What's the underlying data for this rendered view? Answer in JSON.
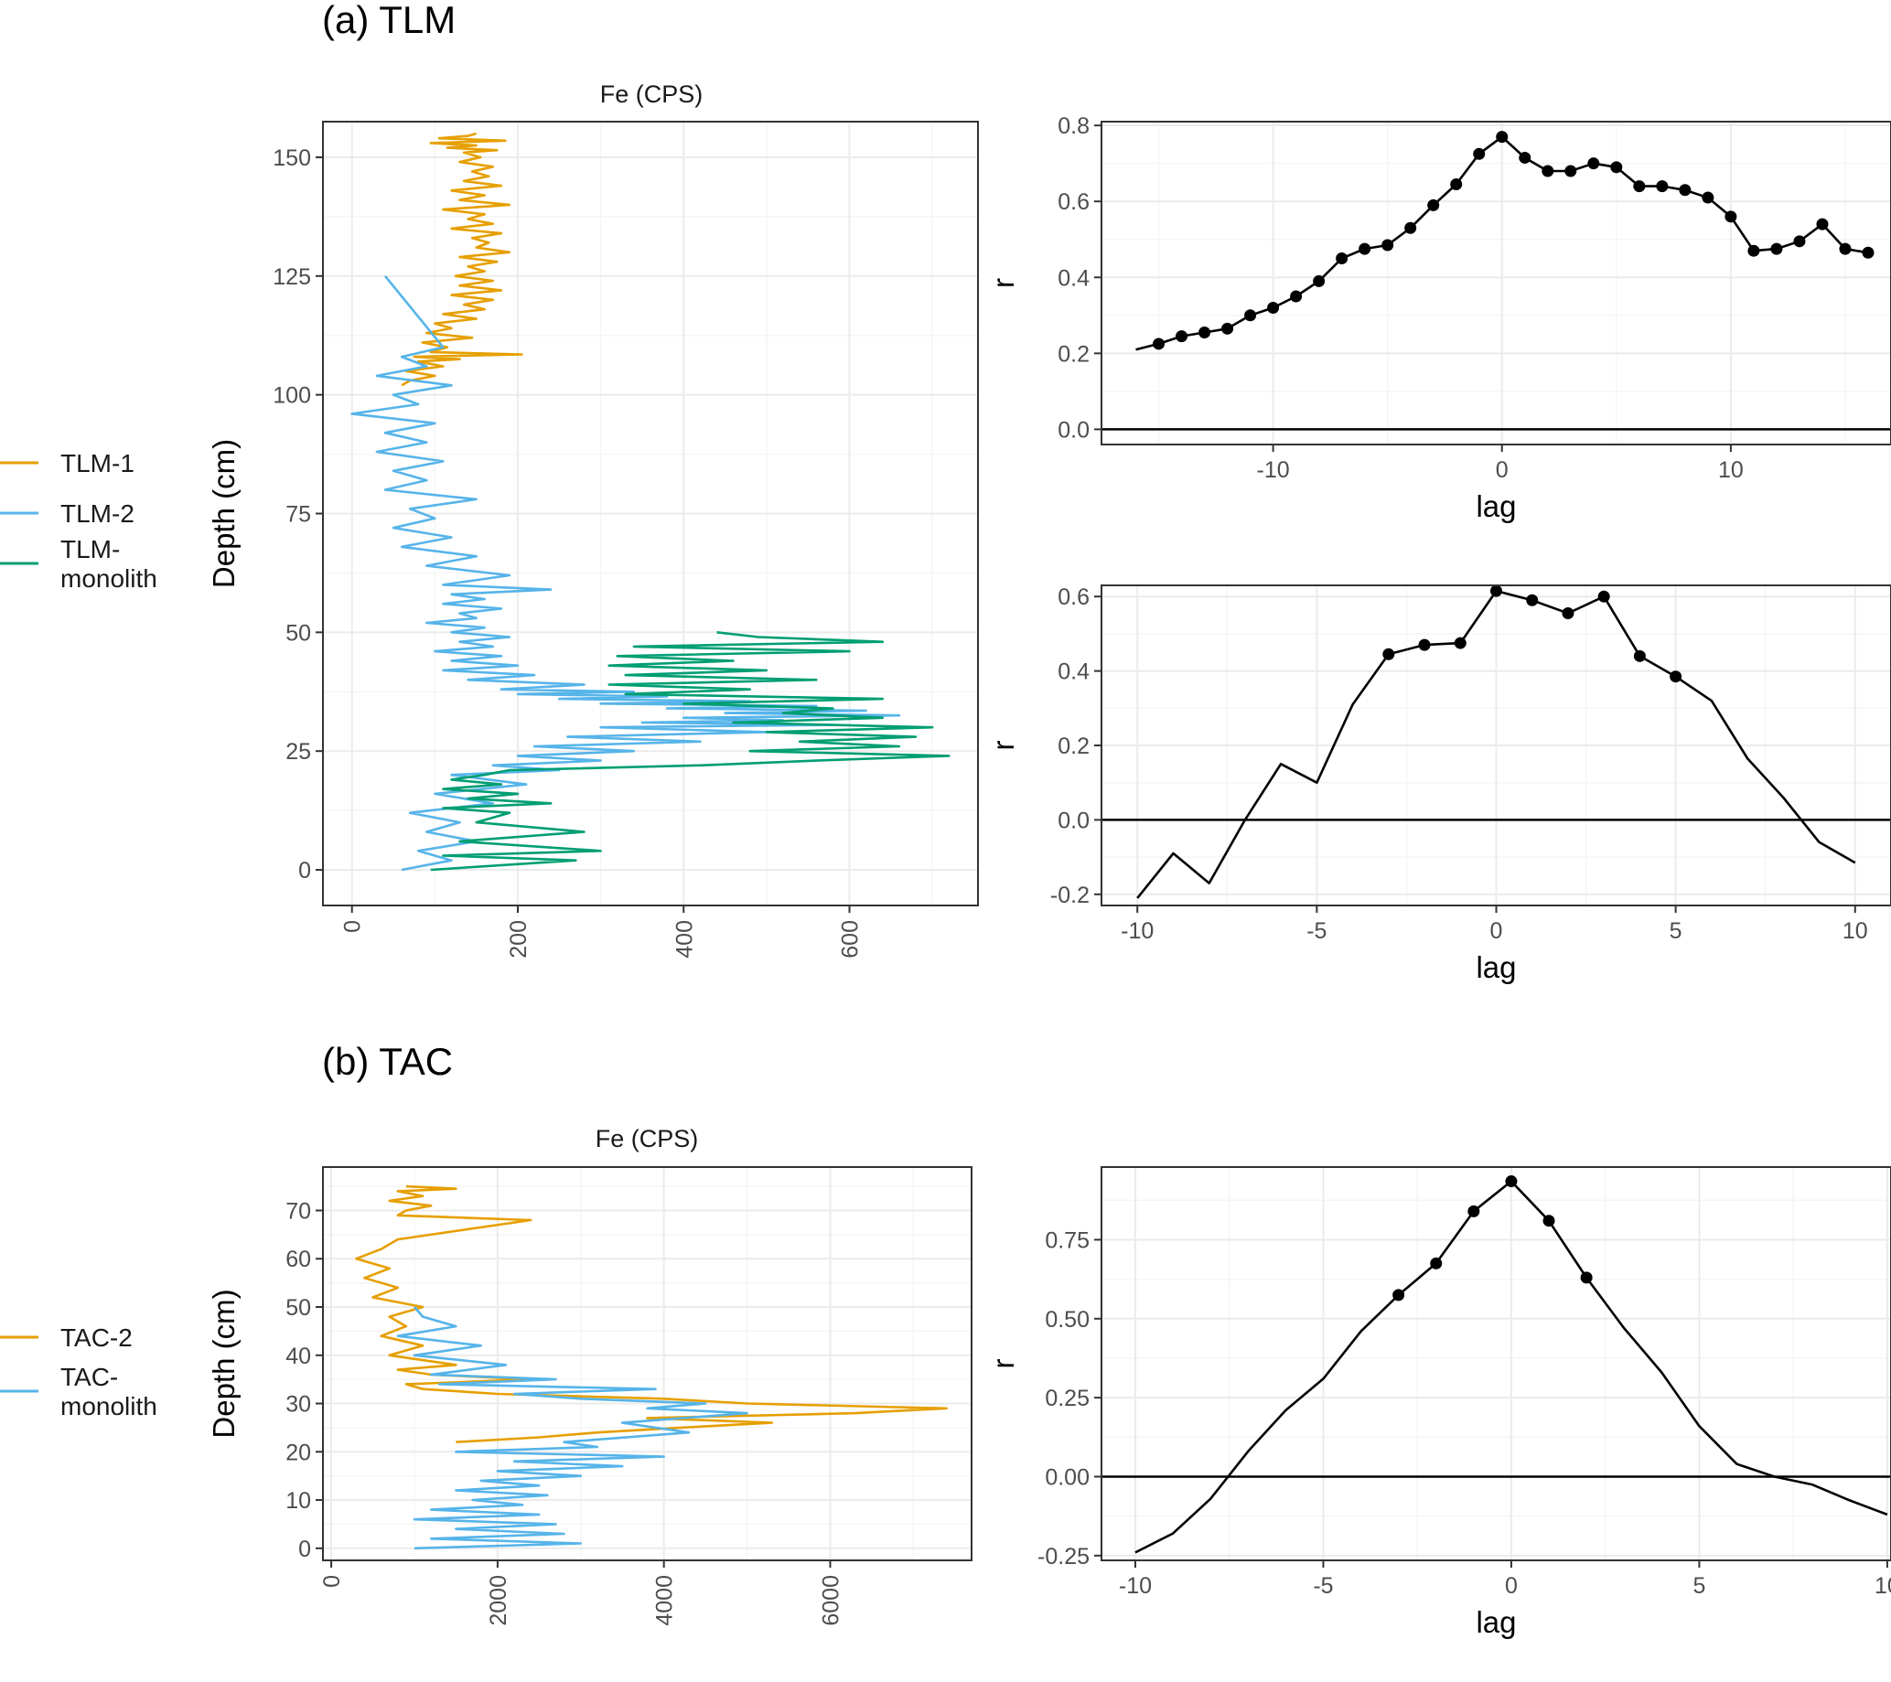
{
  "figure": {
    "panel_a_title": "(a) TLM",
    "panel_b_title": "(b) TAC",
    "legend_a": [
      {
        "label": "TLM-1",
        "color": "#E69F00"
      },
      {
        "label": "TLM-2",
        "color": "#56B4E9"
      },
      {
        "label": "TLM-\nmonolith",
        "color": "#009E73"
      }
    ],
    "legend_b": [
      {
        "label": "TAC-2",
        "color": "#E69F00"
      },
      {
        "label": "TAC-\nmonolith",
        "color": "#56B4E9"
      }
    ]
  },
  "chart_data": [
    {
      "id": "tlm_depth",
      "type": "line",
      "title": "Fe (CPS)",
      "xlabel": "",
      "ylabel": "Depth (cm)",
      "xlim": [
        -35,
        755
      ],
      "ylim": [
        -7.5,
        157.5
      ],
      "xticks": [
        0,
        200,
        400,
        600
      ],
      "yticks": [
        0,
        25,
        50,
        75,
        100,
        125,
        150
      ],
      "x_tick_rotation": -90,
      "series": [
        {
          "name": "TLM-1",
          "color": "#E69F00",
          "x": [
            60,
            70,
            100,
            65,
            110,
            80,
            130,
            75,
            205,
            95,
            115,
            85,
            145,
            90,
            120,
            100,
            150,
            110,
            160,
            135,
            170,
            120,
            180,
            130,
            170,
            125,
            160,
            140,
            175,
            130,
            190,
            150,
            165,
            145,
            180,
            120,
            170,
            140,
            160,
            110,
            190,
            130,
            160,
            120,
            180,
            135,
            165,
            145,
            170,
            130,
            155,
            135,
            175,
            115,
            150,
            95,
            185,
            105,
            140,
            150
          ],
          "y": [
            102,
            103,
            104,
            105,
            106,
            107,
            107.5,
            108,
            108.5,
            109,
            110,
            111,
            112,
            113,
            114,
            115,
            116,
            117,
            118,
            119,
            120,
            121,
            122,
            123,
            124,
            125,
            126,
            127,
            128,
            129,
            130,
            131,
            132,
            133,
            134,
            135,
            136,
            137,
            138,
            139,
            140,
            141,
            142,
            143,
            144,
            145,
            146,
            147,
            148,
            149,
            150,
            151,
            151.5,
            152,
            152.5,
            153,
            153.5,
            154,
            154.5,
            155
          ]
        },
        {
          "name": "TLM-2",
          "color": "#56B4E9",
          "x": [
            60,
            120,
            80,
            150,
            90,
            130,
            70,
            170,
            100,
            210,
            120,
            250,
            170,
            300,
            200,
            340,
            220,
            420,
            260,
            500,
            300,
            580,
            350,
            520,
            400,
            660,
            450,
            620,
            380,
            560,
            300,
            480,
            250,
            380,
            200,
            340,
            180,
            280,
            140,
            220,
            110,
            200,
            120,
            180,
            100,
            170,
            130,
            190,
            120,
            160,
            90,
            150,
            130,
            180,
            110,
            160,
            120,
            240,
            110,
            190,
            90,
            150,
            60,
            120,
            50,
            100,
            70,
            150,
            40,
            90,
            50,
            110,
            30,
            90,
            40,
            100,
            0,
            80,
            50,
            120,
            30,
            90,
            60,
            110,
            40
          ],
          "y": [
            0,
            2,
            4,
            6,
            8,
            10,
            12,
            14,
            16,
            18,
            20,
            21,
            22,
            23,
            24,
            25,
            26,
            27,
            28,
            29,
            30,
            30.5,
            31,
            31.5,
            32,
            32.5,
            33,
            33.5,
            34,
            34.5,
            35,
            35.5,
            36,
            36.5,
            37,
            37.5,
            38,
            39,
            40,
            41,
            42,
            43,
            44,
            45,
            46,
            47,
            48,
            49,
            50,
            51,
            52,
            53,
            54,
            55,
            56,
            57,
            58,
            59,
            60,
            62,
            64,
            66,
            68,
            70,
            72,
            74,
            76,
            78,
            80,
            82,
            84,
            86,
            88,
            90,
            92,
            94,
            96,
            98,
            100,
            102,
            104,
            106,
            108,
            110,
            125
          ]
        },
        {
          "name": "TLM-monolith",
          "color": "#009E73",
          "x": [
            95,
            270,
            110,
            300,
            130,
            280,
            150,
            190,
            110,
            240,
            140,
            200,
            110,
            180,
            120,
            160,
            190,
            420,
            560,
            720,
            480,
            660,
            540,
            680,
            500,
            700,
            460,
            640,
            520,
            580,
            400,
            640,
            330,
            480,
            310,
            560,
            330,
            500,
            310,
            460,
            320,
            600,
            340,
            640,
            490,
            440
          ],
          "y": [
            0,
            2,
            3,
            4,
            6,
            8,
            10,
            12,
            13,
            14,
            15,
            16,
            17,
            18,
            19,
            20,
            21,
            22,
            23,
            24,
            25,
            26,
            27,
            28,
            29,
            30,
            31,
            32,
            33,
            34,
            35,
            36,
            37,
            38,
            39,
            40,
            41,
            42,
            43,
            44,
            45,
            46,
            47,
            48,
            49,
            50
          ]
        }
      ]
    },
    {
      "id": "tlm_ccf1",
      "type": "line",
      "xlabel": "lag",
      "ylabel": "r",
      "xlim": [
        -17.5,
        17
      ],
      "ylim": [
        -0.04,
        0.81
      ],
      "xticks": [
        -10,
        0,
        10
      ],
      "yticks": [
        0.0,
        0.2,
        0.4,
        0.6,
        0.8
      ],
      "ytick_labels": [
        "0.0",
        "0.2",
        "0.4",
        "0.6",
        "0.8"
      ],
      "hline": 0,
      "series": [
        {
          "name": "ccf",
          "color": "#000000",
          "x": [
            -16,
            -15,
            -14,
            -13,
            -12,
            -11,
            -10,
            -9,
            -8,
            -7,
            -6,
            -5,
            -4,
            -3,
            -2,
            -1,
            0,
            1,
            2,
            3,
            4,
            5,
            6,
            7,
            8,
            9,
            10,
            11,
            12,
            13,
            14,
            15,
            16
          ],
          "y": [
            0.21,
            0.225,
            0.245,
            0.255,
            0.265,
            0.3,
            0.32,
            0.35,
            0.39,
            0.45,
            0.475,
            0.485,
            0.53,
            0.59,
            0.645,
            0.725,
            0.77,
            0.715,
            0.68,
            0.68,
            0.7,
            0.69,
            0.64,
            0.64,
            0.63,
            0.61,
            0.56,
            0.47,
            0.475,
            0.495,
            0.54,
            0.475,
            0.465
          ],
          "markers": [
            false,
            true,
            true,
            true,
            true,
            true,
            true,
            true,
            true,
            true,
            true,
            true,
            true,
            true,
            true,
            true,
            true,
            true,
            true,
            true,
            true,
            true,
            true,
            true,
            true,
            true,
            true,
            true,
            true,
            true,
            true,
            true,
            true
          ]
        }
      ]
    },
    {
      "id": "tlm_ccf2",
      "type": "line",
      "xlabel": "lag",
      "ylabel": "r",
      "xlim": [
        -11,
        11
      ],
      "ylim": [
        -0.23,
        0.63
      ],
      "xticks": [
        -10,
        -5,
        0,
        5,
        10
      ],
      "yticks": [
        -0.2,
        0.0,
        0.2,
        0.4,
        0.6
      ],
      "ytick_labels": [
        "-0.2",
        "0.0",
        "0.2",
        "0.4",
        "0.6"
      ],
      "hline": 0,
      "series": [
        {
          "name": "ccf",
          "color": "#000000",
          "x": [
            -10,
            -9,
            -8,
            -7,
            -6,
            -5,
            -4,
            -3,
            -2,
            -1,
            0,
            1,
            2,
            3,
            4,
            5,
            6,
            7,
            8,
            9,
            10
          ],
          "y": [
            -0.21,
            -0.09,
            -0.17,
            0.0,
            0.15,
            0.1,
            0.31,
            0.445,
            0.47,
            0.475,
            0.615,
            0.59,
            0.555,
            0.6,
            0.44,
            0.385,
            0.32,
            0.165,
            0.06,
            -0.06,
            -0.115
          ],
          "markers": [
            false,
            false,
            false,
            false,
            false,
            false,
            false,
            true,
            true,
            true,
            true,
            true,
            true,
            true,
            true,
            true,
            false,
            false,
            false,
            false,
            false
          ]
        }
      ]
    },
    {
      "id": "tac_depth",
      "type": "line",
      "title": "Fe (CPS)",
      "xlabel": "",
      "ylabel": "Depth (cm)",
      "xlim": [
        -100,
        7700
      ],
      "ylim": [
        -2.5,
        79
      ],
      "xticks": [
        0,
        2000,
        4000,
        6000
      ],
      "yticks": [
        0,
        10,
        20,
        30,
        40,
        50,
        60,
        70
      ],
      "x_tick_rotation": -90,
      "series": [
        {
          "name": "TAC-2",
          "color": "#E69F00",
          "x": [
            1500,
            2500,
            3200,
            4200,
            5300,
            3800,
            6300,
            7400,
            5000,
            4000,
            2000,
            1100,
            900,
            2400,
            1200,
            800,
            1500,
            700,
            1100,
            600,
            900,
            700,
            1100,
            500,
            800,
            400,
            700,
            300,
            600,
            800,
            2400,
            800,
            900,
            1200,
            700,
            1100,
            800,
            1500,
            900
          ],
          "y": [
            22,
            23,
            24,
            25,
            26,
            27,
            28,
            29,
            30,
            31,
            32,
            33,
            34,
            35,
            36,
            37,
            38,
            40,
            42,
            44,
            46,
            48,
            50,
            52,
            54,
            56,
            58,
            60,
            62,
            64,
            68,
            69,
            70,
            71,
            72,
            73,
            74,
            74.5,
            75
          ]
        },
        {
          "name": "TAC-monolith",
          "color": "#56B4E9",
          "x": [
            1000,
            3000,
            1200,
            2800,
            1500,
            2700,
            1000,
            2500,
            1200,
            2300,
            1700,
            2600,
            1500,
            2500,
            1800,
            3000,
            2000,
            3500,
            2200,
            4000,
            1500,
            3200,
            2800,
            4300,
            3500,
            5000,
            3800,
            4500,
            3000,
            2200,
            3900,
            1300,
            2700,
            1200,
            2100,
            1000,
            1800,
            800,
            1500,
            1100,
            1000
          ],
          "y": [
            0,
            1,
            2,
            3,
            4,
            5,
            6,
            7,
            8,
            9,
            10,
            11,
            12,
            13,
            14,
            15,
            16,
            17,
            18,
            19,
            20,
            21,
            22,
            24,
            26,
            28,
            29,
            30,
            31,
            32,
            33,
            34,
            35,
            36,
            38,
            40,
            42,
            44,
            46,
            48,
            50
          ]
        }
      ]
    },
    {
      "id": "tac_ccf",
      "type": "line",
      "xlabel": "lag",
      "ylabel": "r",
      "xlim": [
        -10.9,
        10.1
      ],
      "ylim": [
        -0.265,
        0.98
      ],
      "xticks": [
        -10,
        -5,
        0,
        5,
        10
      ],
      "yticks": [
        -0.25,
        0.0,
        0.25,
        0.5,
        0.75
      ],
      "ytick_labels": [
        "-0.25",
        "0.00",
        "0.25",
        "0.50",
        "0.75"
      ],
      "hline": 0,
      "series": [
        {
          "name": "ccf",
          "color": "#000000",
          "x": [
            -10,
            -9,
            -8,
            -7,
            -6,
            -5,
            -4,
            -3,
            -2,
            -1,
            0,
            1,
            2,
            3,
            4,
            5,
            6,
            7,
            8,
            9,
            10
          ],
          "y": [
            -0.24,
            -0.18,
            -0.07,
            0.08,
            0.21,
            0.31,
            0.46,
            0.575,
            0.675,
            0.84,
            0.935,
            0.81,
            0.63,
            0.47,
            0.33,
            0.16,
            0.04,
            0.0,
            -0.025,
            -0.075,
            -0.12
          ],
          "markers": [
            false,
            false,
            false,
            false,
            false,
            false,
            false,
            true,
            true,
            true,
            true,
            true,
            true,
            false,
            false,
            false,
            false,
            false,
            false,
            false,
            false
          ]
        }
      ]
    }
  ]
}
